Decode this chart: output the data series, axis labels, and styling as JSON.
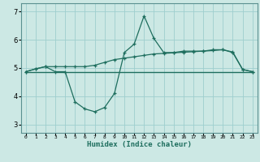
{
  "x": [
    0,
    1,
    2,
    3,
    4,
    5,
    6,
    7,
    8,
    9,
    10,
    11,
    12,
    13,
    14,
    15,
    16,
    17,
    18,
    19,
    20,
    21,
    22,
    23
  ],
  "line_flat": [
    4.87,
    4.87,
    4.87,
    4.87,
    4.87,
    4.87,
    4.87,
    4.87,
    4.87,
    4.87,
    4.87,
    4.87,
    4.87,
    4.87,
    4.87,
    4.87,
    4.87,
    4.87,
    4.87,
    4.87,
    4.87,
    4.87,
    4.87,
    4.87
  ],
  "line_dip": [
    4.87,
    4.97,
    5.05,
    4.87,
    4.87,
    3.8,
    3.55,
    3.45,
    3.6,
    4.1,
    5.55,
    5.85,
    6.85,
    6.05,
    5.55,
    5.55,
    5.6,
    5.6,
    5.6,
    5.65,
    5.65,
    5.55,
    4.95,
    4.87
  ],
  "line_rise": [
    4.87,
    4.97,
    5.05,
    5.05,
    5.05,
    5.05,
    5.05,
    5.1,
    5.2,
    5.3,
    5.35,
    5.4,
    5.45,
    5.5,
    5.52,
    5.54,
    5.56,
    5.58,
    5.6,
    5.62,
    5.65,
    5.57,
    4.95,
    4.87
  ],
  "line_color": "#1e6e5e",
  "bg_color": "#cce8e4",
  "grid_color": "#9ecece",
  "xlabel": "Humidex (Indice chaleur)",
  "ylim": [
    2.7,
    7.3
  ],
  "xlim": [
    -0.5,
    23.5
  ],
  "yticks": [
    3,
    4,
    5,
    6,
    7
  ],
  "xticks": [
    0,
    1,
    2,
    3,
    4,
    5,
    6,
    7,
    8,
    9,
    10,
    11,
    12,
    13,
    14,
    15,
    16,
    17,
    18,
    19,
    20,
    21,
    22,
    23
  ]
}
